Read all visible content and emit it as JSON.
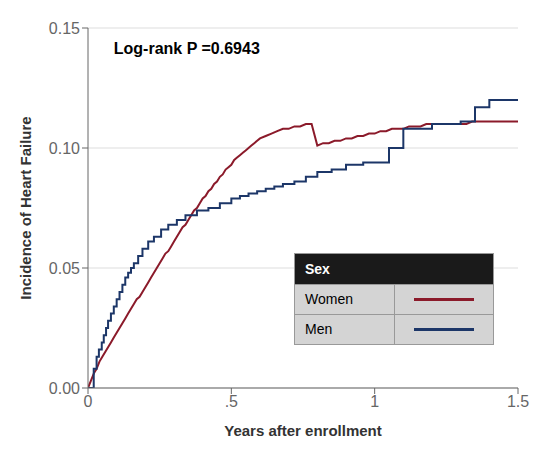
{
  "chart_data": {
    "type": "line",
    "xlabel": "Years after enrollment",
    "ylabel": "Incidence of Heart Failure",
    "annotation": "Log-rank P =0.6943",
    "legend_title": "Sex",
    "legend": "lower right",
    "grid": "y",
    "xlim": [
      0,
      1.5
    ],
    "ylim": [
      0,
      0.15
    ],
    "xticks": [
      0,
      {
        "value": 0.5,
        "label": ".5"
      },
      1,
      1.5
    ],
    "yticks": [
      {
        "value": 0.0,
        "label": "0.00"
      },
      {
        "value": 0.05,
        "label": "0.05"
      },
      {
        "value": 0.1,
        "label": "0.10"
      },
      {
        "value": 0.15,
        "label": "0.15"
      }
    ],
    "series": [
      {
        "name": "Women",
        "color": "#8b1a2a",
        "x": [
          0.0,
          0.01,
          0.02,
          0.03,
          0.04,
          0.05,
          0.06,
          0.07,
          0.08,
          0.09,
          0.1,
          0.11,
          0.12,
          0.13,
          0.14,
          0.15,
          0.16,
          0.17,
          0.18,
          0.19,
          0.2,
          0.21,
          0.22,
          0.23,
          0.24,
          0.25,
          0.26,
          0.27,
          0.28,
          0.29,
          0.3,
          0.31,
          0.32,
          0.33,
          0.34,
          0.35,
          0.36,
          0.37,
          0.38,
          0.39,
          0.4,
          0.41,
          0.42,
          0.43,
          0.44,
          0.45,
          0.46,
          0.47,
          0.48,
          0.49,
          0.5,
          0.51,
          0.52,
          0.53,
          0.54,
          0.55,
          0.56,
          0.57,
          0.58,
          0.59,
          0.6,
          0.62,
          0.64,
          0.66,
          0.68,
          0.7,
          0.72,
          0.74,
          0.76,
          0.78,
          0.8,
          0.82,
          0.84,
          0.86,
          0.88,
          0.9,
          0.92,
          0.94,
          0.96,
          0.98,
          1.0,
          1.02,
          1.04,
          1.06,
          1.08,
          1.1,
          1.12,
          1.14,
          1.16,
          1.18,
          1.2,
          1.22,
          1.24,
          1.26,
          1.28,
          1.3,
          1.32,
          1.34,
          1.36,
          1.38,
          1.4,
          1.42,
          1.44,
          1.46,
          1.48,
          1.5
        ],
        "values": [
          0.0,
          0.003,
          0.006,
          0.008,
          0.011,
          0.013,
          0.015,
          0.017,
          0.019,
          0.021,
          0.023,
          0.025,
          0.027,
          0.029,
          0.031,
          0.033,
          0.035,
          0.037,
          0.038,
          0.04,
          0.042,
          0.044,
          0.046,
          0.048,
          0.05,
          0.052,
          0.054,
          0.056,
          0.057,
          0.059,
          0.061,
          0.063,
          0.065,
          0.067,
          0.068,
          0.07,
          0.072,
          0.074,
          0.075,
          0.077,
          0.079,
          0.08,
          0.082,
          0.083,
          0.085,
          0.086,
          0.088,
          0.089,
          0.091,
          0.092,
          0.093,
          0.095,
          0.096,
          0.097,
          0.098,
          0.099,
          0.1,
          0.101,
          0.102,
          0.103,
          0.104,
          0.105,
          0.106,
          0.107,
          0.108,
          0.108,
          0.109,
          0.109,
          0.11,
          0.11,
          0.101,
          0.102,
          0.102,
          0.103,
          0.103,
          0.104,
          0.104,
          0.105,
          0.105,
          0.106,
          0.106,
          0.107,
          0.107,
          0.108,
          0.108,
          0.108,
          0.109,
          0.109,
          0.109,
          0.11,
          0.11,
          0.11,
          0.11,
          0.11,
          0.11,
          0.11,
          0.11,
          0.111,
          0.111,
          0.111,
          0.111,
          0.111,
          0.111,
          0.111,
          0.111,
          0.111
        ]
      },
      {
        "name": "Men",
        "color": "#1c3668",
        "x": [
          0.0,
          0.02,
          0.02,
          0.03,
          0.03,
          0.038,
          0.038,
          0.048,
          0.048,
          0.055,
          0.055,
          0.063,
          0.063,
          0.07,
          0.07,
          0.08,
          0.08,
          0.09,
          0.09,
          0.1,
          0.1,
          0.11,
          0.11,
          0.12,
          0.12,
          0.13,
          0.13,
          0.14,
          0.14,
          0.15,
          0.15,
          0.16,
          0.16,
          0.175,
          0.175,
          0.19,
          0.19,
          0.21,
          0.21,
          0.23,
          0.23,
          0.255,
          0.255,
          0.28,
          0.28,
          0.31,
          0.31,
          0.34,
          0.34,
          0.38,
          0.38,
          0.42,
          0.42,
          0.46,
          0.46,
          0.5,
          0.5,
          0.53,
          0.53,
          0.56,
          0.56,
          0.59,
          0.59,
          0.62,
          0.62,
          0.65,
          0.65,
          0.68,
          0.68,
          0.72,
          0.72,
          0.76,
          0.76,
          0.8,
          0.8,
          0.85,
          0.85,
          0.9,
          0.9,
          0.96,
          0.96,
          1.0,
          1.0,
          1.05,
          1.05,
          1.1,
          1.1,
          1.2,
          1.2,
          1.3,
          1.3,
          1.35,
          1.35,
          1.4,
          1.4,
          1.5
        ],
        "values": [
          0.0,
          0.0,
          0.008,
          0.008,
          0.013,
          0.013,
          0.016,
          0.016,
          0.019,
          0.019,
          0.022,
          0.022,
          0.025,
          0.025,
          0.028,
          0.028,
          0.031,
          0.031,
          0.034,
          0.034,
          0.037,
          0.037,
          0.04,
          0.04,
          0.043,
          0.043,
          0.046,
          0.046,
          0.048,
          0.048,
          0.05,
          0.05,
          0.052,
          0.052,
          0.055,
          0.055,
          0.058,
          0.058,
          0.061,
          0.061,
          0.063,
          0.063,
          0.066,
          0.066,
          0.068,
          0.068,
          0.07,
          0.07,
          0.072,
          0.072,
          0.074,
          0.074,
          0.075,
          0.075,
          0.077,
          0.077,
          0.079,
          0.079,
          0.08,
          0.08,
          0.081,
          0.081,
          0.082,
          0.082,
          0.083,
          0.083,
          0.084,
          0.084,
          0.085,
          0.085,
          0.086,
          0.086,
          0.088,
          0.088,
          0.09,
          0.09,
          0.091,
          0.091,
          0.093,
          0.093,
          0.094,
          0.094,
          0.094,
          0.094,
          0.1,
          0.1,
          0.108,
          0.108,
          0.11,
          0.11,
          0.111,
          0.111,
          0.117,
          0.117,
          0.12,
          0.12
        ]
      }
    ]
  }
}
